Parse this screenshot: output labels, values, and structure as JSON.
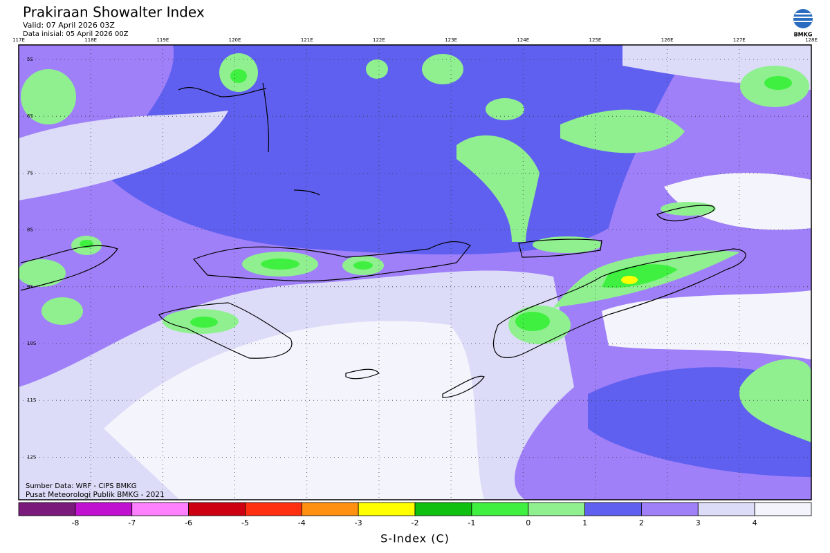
{
  "header": {
    "title": "Prakiraan Showalter Index",
    "valid": "Valid: 07 April 2026 03Z",
    "initial": "Data inisial: 05 April 2026 00Z",
    "logo": "BMKG"
  },
  "map": {
    "lon_labels": [
      "117E",
      "118E",
      "119E",
      "120E",
      "121E",
      "122E",
      "123E",
      "124E",
      "125E",
      "126E",
      "127E",
      "128E"
    ],
    "lat_labels": [
      "5S",
      "6S",
      "7S",
      "8S",
      "9S",
      "10S",
      "11S",
      "12S"
    ],
    "source": "Sumber Data: WRF - CIPS BMKG",
    "credit": "Pusat Meteorologi Publik BMKG - 2021"
  },
  "colorbar": {
    "title": "S-Index (C)",
    "colors": [
      "#7a1a7a",
      "#c010d0",
      "#ff80ff",
      "#cc0010",
      "#ff3010",
      "#ff9010",
      "#ffff00",
      "#10c010",
      "#40f040",
      "#90f090",
      "#6060f0",
      "#a080f8",
      "#dcdcf8",
      "#f4f4fc"
    ],
    "ticks": [
      -8,
      -7,
      -6,
      -5,
      -4,
      -3,
      -2,
      -1,
      0,
      1,
      2,
      3,
      4
    ]
  }
}
